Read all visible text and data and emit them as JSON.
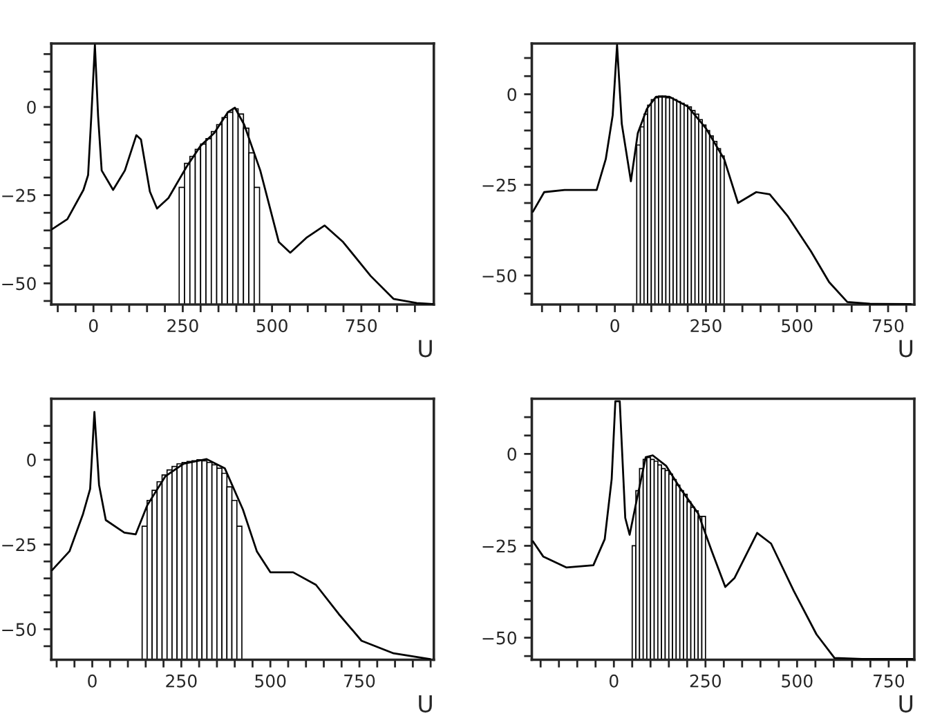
{
  "chart_data": [
    {
      "type": "line",
      "xlabel": "U",
      "xlim": [
        -118,
        953
      ],
      "ylim": [
        -56,
        18
      ],
      "xticks": [
        {
          "value": -100,
          "label": null
        },
        {
          "value": -50,
          "label": null
        },
        0,
        {
          "value": 50,
          "label": null
        },
        {
          "value": 100,
          "label": null
        },
        {
          "value": 150,
          "label": null
        },
        {
          "value": 200,
          "label": null
        },
        250,
        {
          "value": 300,
          "label": null
        },
        {
          "value": 350,
          "label": null
        },
        {
          "value": 400,
          "label": null
        },
        {
          "value": 450,
          "label": null
        },
        500,
        {
          "value": 550,
          "label": null
        },
        {
          "value": 600,
          "label": null
        },
        {
          "value": 650,
          "label": null
        },
        {
          "value": 700,
          "label": null
        },
        750,
        {
          "value": 800,
          "label": null
        },
        {
          "value": 850,
          "label": null
        },
        {
          "value": 900,
          "label": null
        }
      ],
      "yticks": [
        {
          "value": -55,
          "label": null
        },
        {
          "value": -50,
          "label": "−50"
        },
        {
          "value": -45,
          "label": null
        },
        {
          "value": -40,
          "label": null
        },
        {
          "value": -35,
          "label": null
        },
        {
          "value": -30,
          "label": null
        },
        {
          "value": -25,
          "label": "−25"
        },
        {
          "value": -20,
          "label": null
        },
        {
          "value": -15,
          "label": null
        },
        {
          "value": -10,
          "label": null
        },
        {
          "value": -5,
          "label": null
        },
        0,
        {
          "value": 5,
          "label": null
        },
        {
          "value": 10,
          "label": null
        },
        {
          "value": 15,
          "label": null
        }
      ],
      "series": [
        {
          "type": "histogram",
          "color": "#000000",
          "bins": [
            240,
            255,
            270,
            285,
            300,
            315,
            330,
            345,
            360,
            375,
            390,
            405,
            420,
            435,
            450,
            465
          ],
          "base": [
            -56,
            -56,
            -56,
            -56,
            -56,
            -56,
            -56,
            -56,
            -56,
            -56,
            -56,
            -56,
            -56,
            -56,
            -56
          ],
          "values": [
            33.2,
            40,
            42,
            44,
            45.5,
            47,
            49,
            51,
            53,
            54.5,
            55.5,
            54,
            50,
            43,
            33.2
          ]
        },
        {
          "color": "#000000",
          "x": [
            -118,
            -73,
            -28,
            -15,
            -6,
            4,
            13,
            23,
            55,
            88,
            120,
            133,
            158,
            178,
            210,
            261,
            300,
            338,
            377,
            396,
            422,
            467,
            519,
            551,
            596,
            647,
            699,
            776,
            840,
            905,
            950
          ],
          "values": [
            -34.8,
            -31.8,
            -23.5,
            -19.3,
            -2.6,
            17.6,
            -2.6,
            -18,
            -23.5,
            -18,
            -8,
            -9.2,
            -24,
            -28.8,
            -25.8,
            -16.9,
            -11,
            -7.4,
            -1.4,
            -0.2,
            -5,
            -18,
            -38.3,
            -41.3,
            -37.1,
            -33.6,
            -38.3,
            -47.9,
            -54.4,
            -55.6,
            -55.9
          ]
        }
      ]
    },
    {
      "type": "line",
      "xlabel": "U",
      "xlim": [
        -228,
        822
      ],
      "ylim": [
        -58,
        14
      ],
      "xticks": [
        {
          "value": -200,
          "label": null
        },
        {
          "value": -150,
          "label": null
        },
        {
          "value": -100,
          "label": null
        },
        {
          "value": -50,
          "label": null
        },
        0,
        {
          "value": 50,
          "label": null
        },
        {
          "value": 100,
          "label": null
        },
        {
          "value": 150,
          "label": null
        },
        {
          "value": 200,
          "label": null
        },
        250,
        {
          "value": 300,
          "label": null
        },
        {
          "value": 350,
          "label": null
        },
        {
          "value": 400,
          "label": null
        },
        {
          "value": 450,
          "label": null
        },
        500,
        {
          "value": 550,
          "label": null
        },
        {
          "value": 600,
          "label": null
        },
        {
          "value": 650,
          "label": null
        },
        {
          "value": 700,
          "label": null
        },
        750,
        {
          "value": 800,
          "label": null
        }
      ],
      "yticks": [
        {
          "value": -55,
          "label": null
        },
        {
          "value": -50,
          "label": "−50"
        },
        {
          "value": -45,
          "label": null
        },
        {
          "value": -40,
          "label": null
        },
        {
          "value": -35,
          "label": null
        },
        {
          "value": -30,
          "label": null
        },
        {
          "value": -25,
          "label": "−25"
        },
        {
          "value": -20,
          "label": null
        },
        {
          "value": -15,
          "label": null
        },
        {
          "value": -10,
          "label": null
        },
        {
          "value": -5,
          "label": null
        },
        0,
        {
          "value": 5,
          "label": null
        },
        {
          "value": 10,
          "label": null
        }
      ],
      "series": [
        {
          "type": "histogram",
          "color": "#000000",
          "bins": [
            60,
            70,
            80,
            90,
            100,
            110,
            120,
            130,
            140,
            150,
            160,
            170,
            180,
            190,
            200,
            210,
            220,
            230,
            240,
            250,
            260,
            270,
            280,
            290,
            300
          ],
          "base": [
            -58,
            -58,
            -58,
            -58,
            -58,
            -58,
            -58,
            -58,
            -58,
            -58,
            -58,
            -58,
            -58,
            -58,
            -58,
            -58,
            -58,
            -58,
            -58,
            -58,
            -58,
            -58,
            -58,
            -58
          ],
          "values": [
            44,
            49,
            52.5,
            55,
            56.5,
            57,
            57.5,
            57.5,
            57,
            57,
            56.5,
            56,
            55.5,
            55,
            54.5,
            53.5,
            52.5,
            51,
            49.5,
            48,
            46.5,
            45,
            43,
            41
          ]
        },
        {
          "color": "#000000",
          "x": [
            -225,
            -194,
            -138,
            -50,
            -25,
            -6,
            6,
            19,
            44,
            63,
            88,
            113,
            150,
            200,
            250,
            300,
            338,
            388,
            425,
            475,
            538,
            588,
            638,
            700,
            812
          ],
          "values": [
            -32.4,
            -27,
            -26.4,
            -26.4,
            -17.9,
            -5.8,
            13.6,
            -8.2,
            -24,
            -10.7,
            -4,
            -0.7,
            -0.7,
            -3.4,
            -9.4,
            -17.9,
            -30,
            -27,
            -27.6,
            -33.7,
            -43.3,
            -51.8,
            -57.3,
            -57.8,
            -57.9
          ]
        }
      ]
    },
    {
      "type": "line",
      "xlabel": "U",
      "xlim": [
        -115,
        959
      ],
      "ylim": [
        -59,
        18
      ],
      "xticks": [
        {
          "value": -100,
          "label": null
        },
        {
          "value": -50,
          "label": null
        },
        0,
        {
          "value": 50,
          "label": null
        },
        {
          "value": 100,
          "label": null
        },
        {
          "value": 150,
          "label": null
        },
        {
          "value": 200,
          "label": null
        },
        250,
        {
          "value": 300,
          "label": null
        },
        {
          "value": 350,
          "label": null
        },
        {
          "value": 400,
          "label": null
        },
        {
          "value": 450,
          "label": null
        },
        500,
        {
          "value": 550,
          "label": null
        },
        {
          "value": 600,
          "label": null
        },
        {
          "value": 650,
          "label": null
        },
        {
          "value": 700,
          "label": null
        },
        750,
        {
          "value": 800,
          "label": null
        },
        {
          "value": 850,
          "label": null
        },
        {
          "value": 900,
          "label": null
        },
        {
          "value": 950,
          "label": null
        }
      ],
      "yticks": [
        {
          "value": -55,
          "label": null
        },
        {
          "value": -50,
          "label": "−50"
        },
        {
          "value": -45,
          "label": null
        },
        {
          "value": -40,
          "label": null
        },
        {
          "value": -35,
          "label": null
        },
        {
          "value": -30,
          "label": null
        },
        {
          "value": -25,
          "label": "−25"
        },
        {
          "value": -20,
          "label": null
        },
        {
          "value": -15,
          "label": null
        },
        {
          "value": -10,
          "label": null
        },
        {
          "value": -5,
          "label": null
        },
        0,
        {
          "value": 5,
          "label": null
        },
        {
          "value": 10,
          "label": null
        }
      ],
      "series": [
        {
          "type": "histogram",
          "color": "#000000",
          "bins": [
            140,
            154,
            168,
            182,
            196,
            210,
            224,
            238,
            252,
            266,
            280,
            294,
            308,
            322,
            336,
            350,
            364,
            378,
            392,
            406,
            420
          ],
          "base": [
            -59,
            -59,
            -59,
            -59,
            -59,
            -59,
            -59,
            -59,
            -59,
            -59,
            -59,
            -59,
            -59,
            -59,
            -59,
            -59,
            -59,
            -59,
            -59,
            -59
          ],
          "values": [
            39.4,
            47,
            50,
            52.5,
            54.5,
            56,
            57,
            57.8,
            58.2,
            58.5,
            58.7,
            59,
            58.7,
            58.2,
            57.5,
            56.5,
            55,
            51,
            47,
            39.4
          ]
        },
        {
          "color": "#000000",
          "x": [
            -113,
            -64,
            -26,
            -6,
            6,
            19,
            38,
            90,
            122,
            154,
            205,
            256,
            321,
            372,
            423,
            462,
            500,
            564,
            628,
            692,
            756,
            846,
            949
          ],
          "values": [
            -32.6,
            -27,
            -16,
            -8.6,
            14.1,
            -7.4,
            -17.8,
            -21.5,
            -22,
            -13.5,
            -4.9,
            -1.2,
            0.2,
            -2.5,
            -14.7,
            -27,
            -33.2,
            -33.2,
            -36.9,
            -45.5,
            -53.4,
            -57.1,
            -58.8
          ]
        }
      ]
    },
    {
      "type": "line",
      "xlabel": "U",
      "xlim": [
        -224,
        820
      ],
      "ylim": [
        -56,
        15
      ],
      "xticks": [
        {
          "value": -200,
          "label": null
        },
        {
          "value": -150,
          "label": null
        },
        {
          "value": -100,
          "label": null
        },
        {
          "value": -50,
          "label": null
        },
        0,
        {
          "value": 50,
          "label": null
        },
        {
          "value": 100,
          "label": null
        },
        {
          "value": 150,
          "label": null
        },
        {
          "value": 200,
          "label": null
        },
        250,
        {
          "value": 300,
          "label": null
        },
        {
          "value": 350,
          "label": null
        },
        {
          "value": 400,
          "label": null
        },
        {
          "value": 450,
          "label": null
        },
        500,
        {
          "value": 550,
          "label": null
        },
        {
          "value": 600,
          "label": null
        },
        {
          "value": 650,
          "label": null
        },
        {
          "value": 700,
          "label": null
        },
        750,
        {
          "value": 800,
          "label": null
        }
      ],
      "yticks": [
        {
          "value": -55,
          "label": null
        },
        {
          "value": -50,
          "label": "−50"
        },
        {
          "value": -45,
          "label": null
        },
        {
          "value": -40,
          "label": null
        },
        {
          "value": -35,
          "label": null
        },
        {
          "value": -30,
          "label": null
        },
        {
          "value": -25,
          "label": "−25"
        },
        {
          "value": -20,
          "label": null
        },
        {
          "value": -15,
          "label": null
        },
        {
          "value": -10,
          "label": null
        },
        {
          "value": -5,
          "label": null
        },
        0,
        {
          "value": 5,
          "label": null
        },
        {
          "value": 10,
          "label": null
        }
      ],
      "series": [
        {
          "type": "histogram",
          "color": "#000000",
          "bins": [
            50,
            60,
            70,
            80,
            90,
            100,
            110,
            120,
            130,
            140,
            150,
            160,
            170,
            180,
            190,
            200,
            210,
            220,
            230,
            240,
            250
          ],
          "base": [
            -56,
            -56,
            -56,
            -56,
            -56,
            -56,
            -56,
            -56,
            -56,
            -56,
            -56,
            -56,
            -56,
            -56,
            -56,
            -56,
            -56,
            -56,
            -56,
            -56
          ],
          "values": [
            31,
            46,
            52,
            54.5,
            55,
            54.5,
            54,
            53,
            52,
            51.5,
            50.5,
            49,
            47.5,
            46,
            45,
            43,
            41.5,
            40.5,
            39,
            39
          ]
        },
        {
          "color": "#000000",
          "x": [
            -221,
            -193,
            -130,
            -56,
            -25,
            -6,
            4,
            16,
            31,
            43,
            62,
            87,
            106,
            143,
            180,
            230,
            267,
            304,
            329,
            391,
            429,
            491,
            553,
            602,
            677,
            815
          ],
          "values": [
            -23.8,
            -27.9,
            -30.9,
            -30.3,
            -23.2,
            -6.8,
            14.3,
            14.3,
            -17.4,
            -22,
            -12.7,
            -0.9,
            -0.4,
            -3.3,
            -9.2,
            -16.2,
            -26.4,
            -36.2,
            -33.8,
            -21.5,
            -24.4,
            -37.3,
            -49.1,
            -55.5,
            -55.8,
            -55.8
          ]
        }
      ]
    }
  ]
}
